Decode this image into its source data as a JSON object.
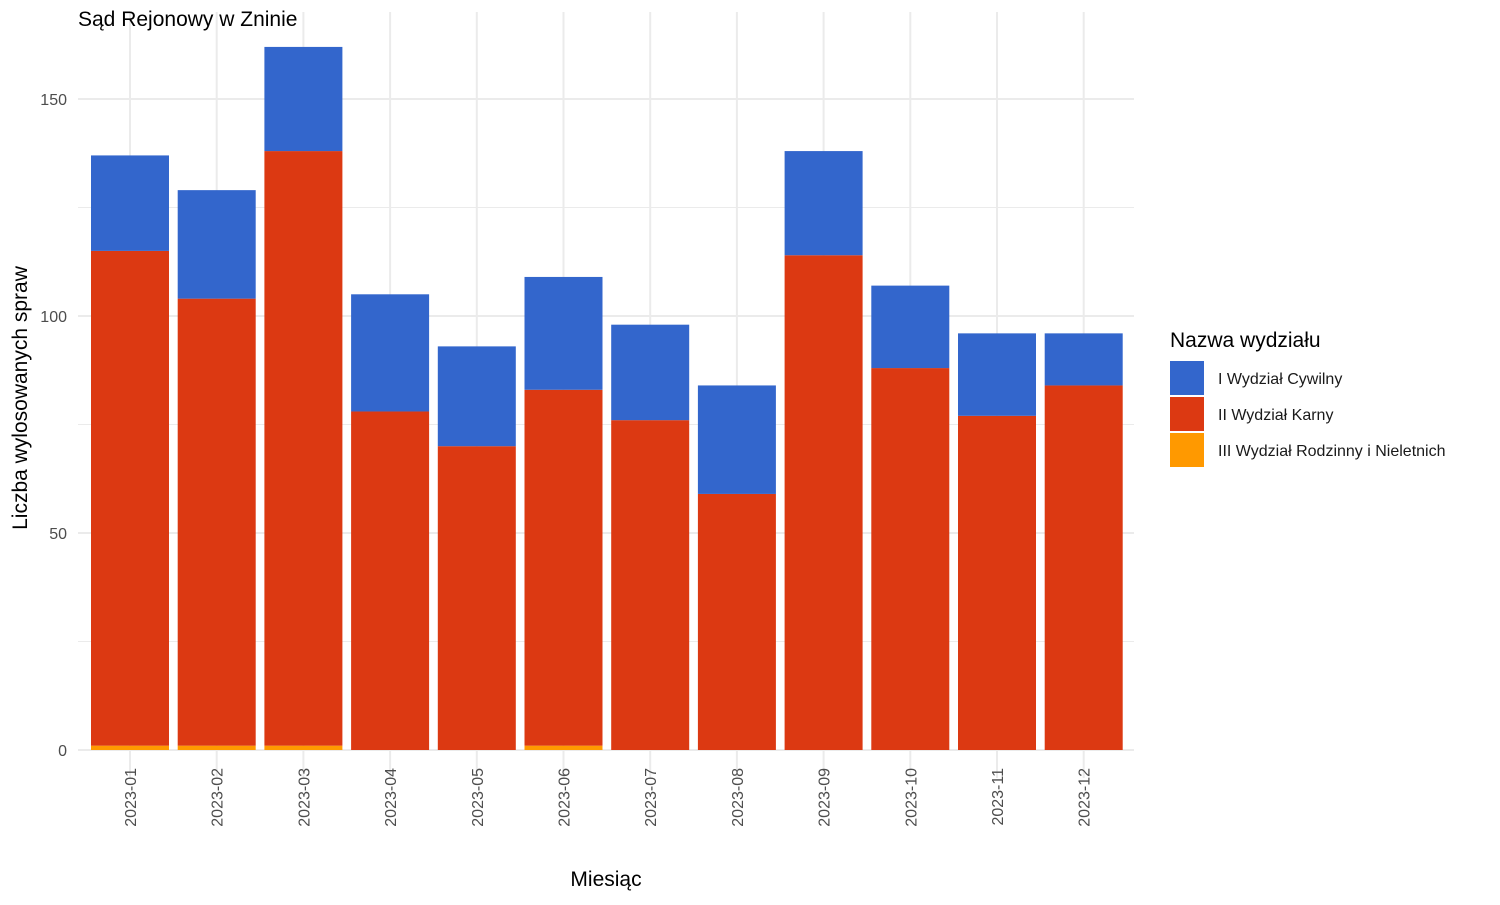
{
  "chart_data": {
    "type": "bar",
    "stacked": true,
    "title": "Sąd Rejonowy w Zninie",
    "xlabel": "Miesiąc",
    "ylabel": "Liczba wylosowanych spraw",
    "ylim": [
      0,
      165
    ],
    "yticks": [
      0,
      50,
      100,
      150
    ],
    "grid": true,
    "categories": [
      "2023-01",
      "2023-02",
      "2023-03",
      "2023-04",
      "2023-05",
      "2023-06",
      "2023-07",
      "2023-08",
      "2023-09",
      "2023-10",
      "2023-11",
      "2023-12"
    ],
    "legend": {
      "title": "Nazwa wydziału",
      "position": "right"
    },
    "series": [
      {
        "name": "III Wydział Rodzinny i Nieletnich",
        "color": "#ff9900",
        "values": [
          1,
          1,
          1,
          0,
          0,
          1,
          0,
          0,
          0,
          0,
          0,
          0
        ]
      },
      {
        "name": "II Wydział Karny",
        "color": "#dc3912",
        "values": [
          114,
          103,
          137,
          78,
          70,
          82,
          76,
          59,
          114,
          88,
          77,
          84
        ]
      },
      {
        "name": "I Wydział Cywilny",
        "color": "#3366cc",
        "values": [
          22,
          25,
          24,
          27,
          23,
          26,
          22,
          25,
          24,
          19,
          19,
          12
        ]
      }
    ],
    "legend_order": [
      "I Wydział Cywilny",
      "II Wydział Karny",
      "III Wydział Rodzinny i Nieletnich"
    ]
  }
}
